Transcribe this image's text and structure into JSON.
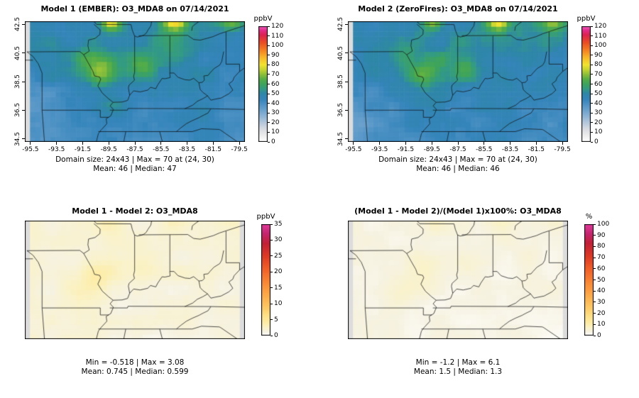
{
  "figure": {
    "background": "#ffffff"
  },
  "palettes": {
    "o3": [
      [
        0,
        "#ffffff"
      ],
      [
        6,
        "#efefef"
      ],
      [
        13,
        "#d9dde2"
      ],
      [
        20,
        "#b3c7dc"
      ],
      [
        28,
        "#86b0d3"
      ],
      [
        36,
        "#5b99c9"
      ],
      [
        44,
        "#3585bb"
      ],
      [
        50,
        "#2e86a8"
      ],
      [
        55,
        "#339b82"
      ],
      [
        60,
        "#3ea45c"
      ],
      [
        65,
        "#55ad46"
      ],
      [
        70,
        "#8cbf3a"
      ],
      [
        75,
        "#c6d531"
      ],
      [
        80,
        "#f2e32e"
      ],
      [
        87,
        "#f8bb2a"
      ],
      [
        95,
        "#f48222"
      ],
      [
        103,
        "#ea4d24"
      ],
      [
        111,
        "#dc2150"
      ],
      [
        116,
        "#e42d8d"
      ],
      [
        120,
        "#f062c0"
      ]
    ],
    "diff": [
      [
        0,
        "#ffffff"
      ],
      [
        1.2,
        "#f6f2e0"
      ],
      [
        2.5,
        "#faf2c8"
      ],
      [
        4,
        "#fdeda6"
      ],
      [
        6.5,
        "#fddf84"
      ],
      [
        9,
        "#fdc763"
      ],
      [
        13,
        "#fda847"
      ],
      [
        17,
        "#f98634"
      ],
      [
        21,
        "#f15f28"
      ],
      [
        25,
        "#dd3a24"
      ],
      [
        29,
        "#c22037"
      ],
      [
        32,
        "#c4256d"
      ],
      [
        35,
        "#e23a9d"
      ]
    ],
    "pct": [
      [
        0,
        "#ffffff"
      ],
      [
        3.5,
        "#f6f2e0"
      ],
      [
        7,
        "#faf2c8"
      ],
      [
        11,
        "#fdeda6"
      ],
      [
        18,
        "#fddf84"
      ],
      [
        26,
        "#fdc763"
      ],
      [
        37,
        "#fda847"
      ],
      [
        48,
        "#f98634"
      ],
      [
        60,
        "#f15f28"
      ],
      [
        71,
        "#dd3a24"
      ],
      [
        83,
        "#c22037"
      ],
      [
        91,
        "#c4256d"
      ],
      [
        100,
        "#e23a9d"
      ]
    ]
  },
  "chart_data": [
    {
      "type": "heatmap",
      "id": "m1",
      "title": "Model 1 (EMBER): O3_MDA8 on 07/14/2021",
      "grid": {
        "rows": 24,
        "cols": 43
      },
      "lon_range": [
        -95.93,
        -79.07
      ],
      "lat_range": [
        34.28,
        42.72
      ],
      "x_ticks": [
        "-95.5",
        "-93.5",
        "-91.5",
        "-89.5",
        "-87.5",
        "-85.5",
        "-83.5",
        "-81.5",
        "-79.5"
      ],
      "y_ticks": [
        "34.5",
        "36.5",
        "38.5",
        "40.5",
        "42.5"
      ],
      "colorbar": {
        "unit": "ppbV",
        "min": 0,
        "max": 120,
        "ticks": [
          0,
          10,
          20,
          30,
          40,
          50,
          60,
          70,
          80,
          90,
          100,
          110,
          120
        ]
      },
      "palette": "o3",
      "stats": {
        "domain_size": "24x43",
        "max": 70,
        "max_at": "(24, 30)",
        "mean": 46,
        "median": 47,
        "caption1": "Domain size: 24x43 | Max = 70 at (24, 30)",
        "caption2": "Mean: 46 | Median: 47"
      },
      "field": {
        "seed": 3,
        "base": 45,
        "lat_grad": 0.9,
        "noise1": 4.5,
        "noise2": 2.2,
        "clamp": [
          14,
          96
        ],
        "na_left": true,
        "blobs": [
          {
            "lon": -84.4,
            "lat": 42.9,
            "sx": 0.65,
            "sy": 0.55,
            "a": 40
          },
          {
            "lon": -89.4,
            "lat": 42.85,
            "sx": 0.55,
            "sy": 0.5,
            "a": 30
          },
          {
            "lon": -80.15,
            "lat": 42.8,
            "sx": 0.7,
            "sy": 0.5,
            "a": 22
          },
          {
            "lon": -89.95,
            "lat": 39.2,
            "sx": 0.85,
            "sy": 0.65,
            "a": 17
          },
          {
            "lon": -86.9,
            "lat": 39.4,
            "sx": 0.75,
            "sy": 0.55,
            "a": 12
          },
          {
            "lon": -91.35,
            "lat": 40.2,
            "sx": 0.6,
            "sy": 0.5,
            "a": 9
          },
          {
            "lon": -89.0,
            "lat": 39.8,
            "sx": 2.8,
            "sy": 1.7,
            "a": 6
          },
          {
            "lon": -84.0,
            "lat": 41.4,
            "sx": 1.6,
            "sy": 0.9,
            "a": 7
          },
          {
            "lon": -89.3,
            "lat": 36.9,
            "sx": 0.7,
            "sy": 0.5,
            "a": 8
          },
          {
            "lon": -94.6,
            "lat": 35.8,
            "sx": 2.2,
            "sy": 1.6,
            "a": -6
          }
        ]
      }
    },
    {
      "type": "heatmap",
      "id": "m2",
      "title": "Model 2 (ZeroFires): O3_MDA8 on 07/14/2021",
      "grid": {
        "rows": 24,
        "cols": 43
      },
      "lon_range": [
        -95.93,
        -79.07
      ],
      "lat_range": [
        34.28,
        42.72
      ],
      "x_ticks": [
        "-95.5",
        "-93.5",
        "-91.5",
        "-89.5",
        "-87.5",
        "-85.5",
        "-83.5",
        "-81.5",
        "-79.5"
      ],
      "y_ticks": [
        "34.5",
        "36.5",
        "38.5",
        "40.5",
        "42.5"
      ],
      "colorbar": {
        "unit": "ppbV",
        "min": 0,
        "max": 120,
        "ticks": [
          0,
          10,
          20,
          30,
          40,
          50,
          60,
          70,
          80,
          90,
          100,
          110,
          120
        ]
      },
      "palette": "o3",
      "stats": {
        "domain_size": "24x43",
        "max": 70,
        "max_at": "(24, 30)",
        "mean": 46,
        "median": 46,
        "caption1": "Domain size: 24x43 | Max = 70 at (24, 30)",
        "caption2": "Mean: 46 | Median: 46"
      },
      "field": {
        "seed": 4,
        "base": 45,
        "lat_grad": 0.9,
        "noise1": 4.5,
        "noise2": 2.2,
        "clamp": [
          14,
          96
        ],
        "na_left": true,
        "blobs": [
          {
            "lon": -84.4,
            "lat": 42.9,
            "sx": 0.65,
            "sy": 0.55,
            "a": 38
          },
          {
            "lon": -89.4,
            "lat": 42.85,
            "sx": 0.55,
            "sy": 0.5,
            "a": 28
          },
          {
            "lon": -80.15,
            "lat": 42.8,
            "sx": 0.7,
            "sy": 0.5,
            "a": 20
          },
          {
            "lon": -89.95,
            "lat": 39.2,
            "sx": 0.85,
            "sy": 0.65,
            "a": 15
          },
          {
            "lon": -86.9,
            "lat": 39.4,
            "sx": 0.75,
            "sy": 0.55,
            "a": 11
          },
          {
            "lon": -91.35,
            "lat": 40.2,
            "sx": 0.6,
            "sy": 0.5,
            "a": 8
          },
          {
            "lon": -89.0,
            "lat": 39.8,
            "sx": 2.8,
            "sy": 1.7,
            "a": 6
          },
          {
            "lon": -84.0,
            "lat": 41.4,
            "sx": 1.6,
            "sy": 0.9,
            "a": 7
          },
          {
            "lon": -89.3,
            "lat": 36.9,
            "sx": 0.7,
            "sy": 0.5,
            "a": 7
          },
          {
            "lon": -94.6,
            "lat": 35.8,
            "sx": 2.2,
            "sy": 1.6,
            "a": -6
          }
        ]
      }
    },
    {
      "type": "heatmap",
      "id": "m3",
      "title": "Model 1 - Model 2: O3_MDA8",
      "grid": {
        "rows": 24,
        "cols": 43
      },
      "lon_range": [
        -95.93,
        -79.07
      ],
      "lat_range": [
        34.28,
        42.72
      ],
      "x_ticks": [],
      "y_ticks": [],
      "colorbar": {
        "unit": "ppbV",
        "min": 0,
        "max": 35,
        "ticks": [
          0,
          5,
          10,
          15,
          20,
          25,
          30,
          35
        ]
      },
      "palette": "diff",
      "stats": {
        "min": -0.518,
        "max": 3.08,
        "mean": 0.745,
        "median": 0.599,
        "caption1": "Min = -0.518 | Max = 3.08",
        "caption2": "Mean: 0.745 | Median: 0.599"
      },
      "field": {
        "seed": 9,
        "base": 1.6,
        "lat_grad": 0.05,
        "noise1": 0.6,
        "noise2": 0.25,
        "clamp": [
          0,
          35
        ],
        "na_left": true,
        "na_right": true,
        "blobs": [
          {
            "lon": -84.4,
            "lat": 42.9,
            "sx": 0.8,
            "sy": 0.6,
            "a": 1.6
          },
          {
            "lon": -89.4,
            "lat": 42.85,
            "sx": 0.7,
            "sy": 0.55,
            "a": 1.3
          },
          {
            "lon": -80.15,
            "lat": 42.8,
            "sx": 0.8,
            "sy": 0.6,
            "a": 1.0
          },
          {
            "lon": -89.95,
            "lat": 39.2,
            "sx": 1.0,
            "sy": 0.8,
            "a": 1.5
          },
          {
            "lon": -91.2,
            "lat": 37.9,
            "sx": 1.3,
            "sy": 1.0,
            "a": 1.1
          },
          {
            "lon": -86.9,
            "lat": 39.4,
            "sx": 0.9,
            "sy": 0.7,
            "a": 0.9
          }
        ]
      }
    },
    {
      "type": "heatmap",
      "id": "m4",
      "title": "(Model 1 - Model 2)/(Model 1)x100%: O3_MDA8",
      "grid": {
        "rows": 24,
        "cols": 43
      },
      "lon_range": [
        -95.93,
        -79.07
      ],
      "lat_range": [
        34.28,
        42.72
      ],
      "x_ticks": [],
      "y_ticks": [],
      "colorbar": {
        "unit": "%",
        "min": 0,
        "max": 100,
        "ticks": [
          0,
          10,
          20,
          30,
          40,
          50,
          60,
          70,
          80,
          90,
          100
        ]
      },
      "palette": "pct",
      "stats": {
        "min": -1.2,
        "max": 6.1,
        "mean": 1.5,
        "median": 1.3,
        "caption1": "Min = -1.2 | Max = 6.1",
        "caption2": "Mean: 1.5 | Median: 1.3"
      },
      "field": {
        "seed": 12,
        "base": 3.2,
        "lat_grad": 0.1,
        "noise1": 1.4,
        "noise2": 0.5,
        "clamp": [
          0,
          100
        ],
        "na_left": true,
        "na_right": true,
        "blobs": [
          {
            "lon": -84.4,
            "lat": 42.9,
            "sx": 0.8,
            "sy": 0.6,
            "a": 3.8
          },
          {
            "lon": -89.4,
            "lat": 42.85,
            "sx": 0.7,
            "sy": 0.55,
            "a": 3.1
          },
          {
            "lon": -80.15,
            "lat": 42.8,
            "sx": 0.8,
            "sy": 0.6,
            "a": 2.4
          },
          {
            "lon": -89.95,
            "lat": 39.2,
            "sx": 1.0,
            "sy": 0.8,
            "a": 3.6
          },
          {
            "lon": -91.2,
            "lat": 37.9,
            "sx": 1.3,
            "sy": 1.0,
            "a": 2.6
          },
          {
            "lon": -86.9,
            "lat": 39.4,
            "sx": 0.9,
            "sy": 0.7,
            "a": 2.2
          }
        ]
      }
    }
  ],
  "boundaries": [
    [
      [
        -90.64,
        42.7
      ],
      [
        -90.43,
        42.5
      ],
      [
        -87.8,
        42.49
      ]
    ],
    [
      [
        -87.8,
        42.49
      ],
      [
        -87.7,
        42.1
      ],
      [
        -87.53,
        41.7
      ],
      [
        -87.33,
        41.62
      ],
      [
        -87.0,
        41.68
      ],
      [
        -86.8,
        41.76
      ],
      [
        -86.62,
        41.9
      ],
      [
        -86.5,
        42.1
      ],
      [
        -86.28,
        42.4
      ],
      [
        -86.22,
        42.7
      ]
    ],
    [
      [
        -90.64,
        42.51
      ],
      [
        -90.16,
        42.12
      ],
      [
        -90.18,
        41.8
      ],
      [
        -90.55,
        41.52
      ],
      [
        -91.05,
        41.41
      ],
      [
        -91.1,
        41.0
      ],
      [
        -91.0,
        40.63
      ],
      [
        -91.42,
        40.38
      ]
    ],
    [
      [
        -95.77,
        40.58
      ],
      [
        -91.72,
        40.6
      ],
      [
        -91.42,
        40.38
      ]
    ],
    [
      [
        -91.42,
        40.38
      ],
      [
        -91.1,
        39.85
      ],
      [
        -90.73,
        39.25
      ],
      [
        -90.6,
        38.9
      ],
      [
        -90.2,
        38.82
      ],
      [
        -90.12,
        38.65
      ],
      [
        -90.34,
        38.2
      ],
      [
        -90.0,
        37.7
      ],
      [
        -89.52,
        37.3
      ],
      [
        -89.17,
        37.05
      ]
    ],
    [
      [
        -89.17,
        37.05
      ],
      [
        -89.4,
        36.8
      ],
      [
        -89.15,
        36.55
      ],
      [
        -89.35,
        36.1
      ],
      [
        -89.7,
        35.9
      ],
      [
        -89.65,
        35.55
      ],
      [
        -90.1,
        35.1
      ],
      [
        -90.3,
        34.85
      ],
      [
        -90.45,
        34.3
      ]
    ],
    [
      [
        -95.77,
        40.58
      ],
      [
        -95.3,
        40.25
      ],
      [
        -94.9,
        39.75
      ],
      [
        -94.61,
        39.1
      ],
      [
        -94.61,
        36.5
      ]
    ],
    [
      [
        -95.93,
        40.0
      ],
      [
        -95.31,
        40.0
      ]
    ],
    [
      [
        -94.61,
        36.5
      ],
      [
        -90.15,
        36.5
      ],
      [
        -90.15,
        36.0
      ],
      [
        -89.5,
        36.0
      ]
    ],
    [
      [
        -94.61,
        36.5
      ],
      [
        -94.43,
        34.3
      ]
    ],
    [
      [
        -90.3,
        35.0
      ],
      [
        -83.1,
        35.0
      ]
    ],
    [
      [
        -83.1,
        35.0
      ],
      [
        -82.4,
        35.2
      ],
      [
        -81.04,
        35.15
      ],
      [
        -80.93,
        35.1
      ],
      [
        -79.67,
        34.3
      ]
    ],
    [
      [
        -89.42,
        36.5
      ],
      [
        -88.07,
        36.5
      ],
      [
        -88.03,
        36.62
      ],
      [
        -81.68,
        36.6
      ],
      [
        -79.07,
        36.55
      ]
    ],
    [
      [
        -84.32,
        35.0
      ],
      [
        -84.0,
        35.25
      ],
      [
        -83.55,
        35.56
      ],
      [
        -83.1,
        35.77
      ],
      [
        -82.6,
        35.97
      ],
      [
        -82.28,
        36.13
      ],
      [
        -81.9,
        36.3
      ],
      [
        -81.68,
        36.6
      ]
    ],
    [
      [
        -85.6,
        35.0
      ],
      [
        -85.4,
        34.3
      ]
    ],
    [
      [
        -88.2,
        35.0
      ],
      [
        -88.35,
        34.3
      ]
    ],
    [
      [
        -89.17,
        37.05
      ],
      [
        -88.48,
        37.07
      ],
      [
        -88.06,
        37.18
      ],
      [
        -87.9,
        37.55
      ],
      [
        -87.6,
        37.85
      ],
      [
        -87.1,
        37.78
      ],
      [
        -86.52,
        37.9
      ],
      [
        -86.3,
        38.1
      ],
      [
        -85.9,
        38.0
      ],
      [
        -85.75,
        38.27
      ],
      [
        -85.42,
        38.72
      ],
      [
        -85.2,
        38.7
      ],
      [
        -84.8,
        38.78
      ],
      [
        -84.83,
        39.1
      ],
      [
        -84.5,
        39.1
      ],
      [
        -84.2,
        38.8
      ],
      [
        -83.66,
        38.63
      ],
      [
        -83.3,
        38.6
      ],
      [
        -83.0,
        38.73
      ],
      [
        -82.6,
        38.42
      ],
      [
        -82.33,
        38.45
      ],
      [
        -82.18,
        38.6
      ],
      [
        -82.22,
        38.9
      ],
      [
        -81.9,
        38.93
      ],
      [
        -81.75,
        39.1
      ],
      [
        -81.45,
        39.4
      ],
      [
        -81.0,
        39.66
      ],
      [
        -80.85,
        39.9
      ],
      [
        -80.7,
        40.6
      ]
    ],
    [
      [
        -87.52,
        41.71
      ],
      [
        -87.52,
        39.15
      ],
      [
        -87.6,
        38.85
      ],
      [
        -87.53,
        38.6
      ],
      [
        -87.95,
        38.25
      ],
      [
        -88.0,
        38.05
      ],
      [
        -87.9,
        37.55
      ]
    ],
    [
      [
        -84.82,
        41.71
      ],
      [
        -84.82,
        39.1
      ]
    ],
    [
      [
        -87.2,
        41.71
      ],
      [
        -83.45,
        41.73
      ]
    ],
    [
      [
        -83.45,
        41.73
      ],
      [
        -83.0,
        41.45
      ],
      [
        -82.5,
        41.4
      ],
      [
        -82.0,
        41.52
      ],
      [
        -81.5,
        41.65
      ],
      [
        -81.0,
        41.85
      ],
      [
        -80.5,
        42.0
      ],
      [
        -80.0,
        42.15
      ],
      [
        -79.5,
        42.3
      ],
      [
        -79.07,
        42.42
      ]
    ],
    [
      [
        -83.15,
        42.05
      ],
      [
        -83.1,
        42.35
      ],
      [
        -82.87,
        42.52
      ],
      [
        -82.6,
        42.7
      ]
    ],
    [
      [
        -80.52,
        41.98
      ],
      [
        -80.52,
        39.72
      ]
    ],
    [
      [
        -80.52,
        39.72
      ],
      [
        -79.48,
        39.72
      ],
      [
        -79.48,
        39.21
      ],
      [
        -79.07,
        39.47
      ]
    ],
    [
      [
        -79.48,
        39.21
      ],
      [
        -79.9,
        38.8
      ],
      [
        -80.0,
        38.55
      ],
      [
        -80.3,
        38.35
      ],
      [
        -80.0,
        37.9
      ],
      [
        -80.3,
        37.65
      ],
      [
        -80.9,
        37.35
      ],
      [
        -81.4,
        37.26
      ],
      [
        -81.68,
        37.2
      ],
      [
        -81.93,
        37.5
      ],
      [
        -82.3,
        37.3
      ],
      [
        -82.72,
        37.12
      ],
      [
        -83.07,
        36.85
      ],
      [
        -83.68,
        36.6
      ]
    ],
    [
      [
        -82.6,
        38.42
      ],
      [
        -82.5,
        37.95
      ],
      [
        -82.3,
        37.75
      ],
      [
        -81.93,
        37.5
      ]
    ]
  ]
}
